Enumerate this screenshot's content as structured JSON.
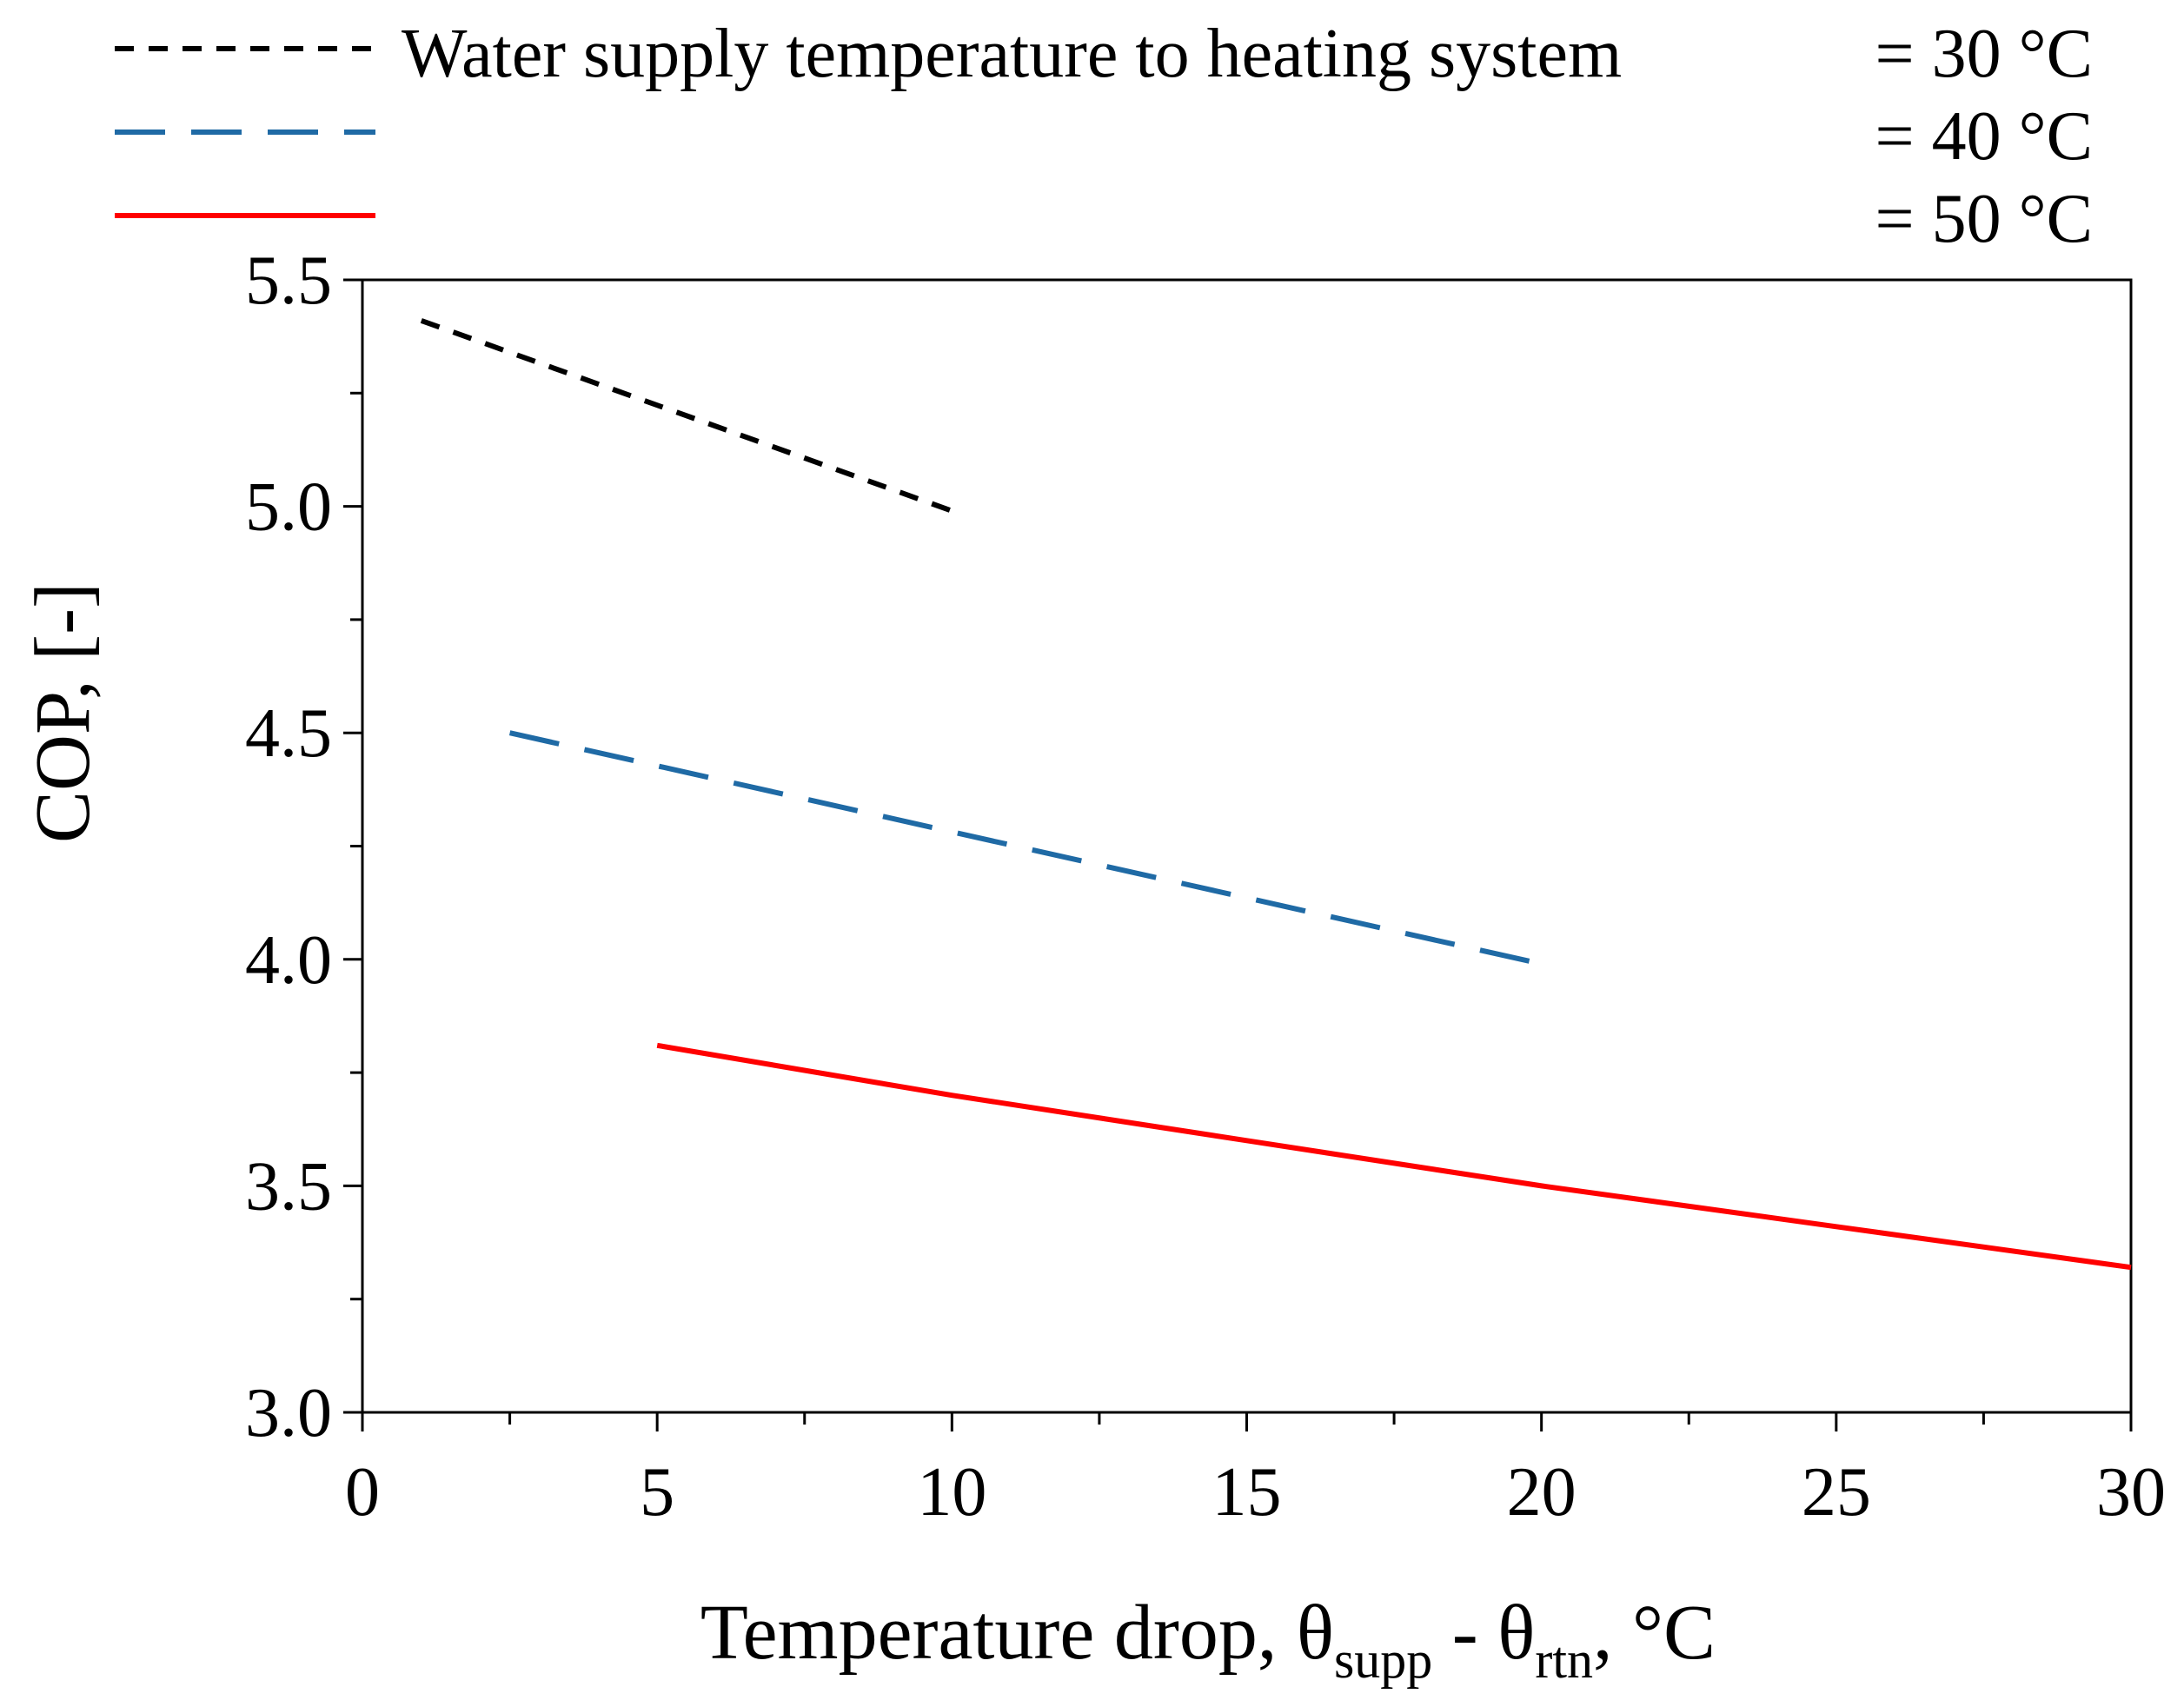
{
  "chart_data": {
    "type": "line",
    "title": "",
    "xlabel": {
      "prefix": "Temperature drop, θ",
      "sub1": "supp",
      "mid": " - θ",
      "sub2": "rtn",
      "suffix": ", °C"
    },
    "ylabel": "COP, [-]",
    "xlim": [
      0,
      30
    ],
    "ylim": [
      3.0,
      5.5
    ],
    "x_ticks": [
      0,
      5,
      10,
      15,
      20,
      25,
      30
    ],
    "x_tick_labels": [
      "0",
      "5",
      "10",
      "15",
      "20",
      "25",
      "30"
    ],
    "y_ticks": [
      3.0,
      3.5,
      4.0,
      4.5,
      5.0,
      5.5
    ],
    "y_tick_labels": [
      "3.0",
      "3.5",
      "4.0",
      "4.5",
      "5.0",
      "5.5"
    ],
    "grid": false,
    "legend": {
      "placement": "top",
      "title": "Water supply temperature to heating system"
    },
    "series": [
      {
        "name": "= 30 °C",
        "color": "#000000",
        "style": "short-dash",
        "x": [
          1,
          10
        ],
        "y": [
          5.41,
          4.99
        ]
      },
      {
        "name": "= 40 °C",
        "color": "#1f6aa5",
        "style": "long-dash",
        "x": [
          2.5,
          20
        ],
        "y": [
          4.5,
          3.99
        ]
      },
      {
        "name": "= 50 °C",
        "color": "#ff0000",
        "style": "solid",
        "x": [
          5,
          10,
          15,
          20,
          25,
          30
        ],
        "y": [
          3.81,
          3.7,
          3.6,
          3.5,
          3.41,
          3.32
        ]
      }
    ]
  }
}
